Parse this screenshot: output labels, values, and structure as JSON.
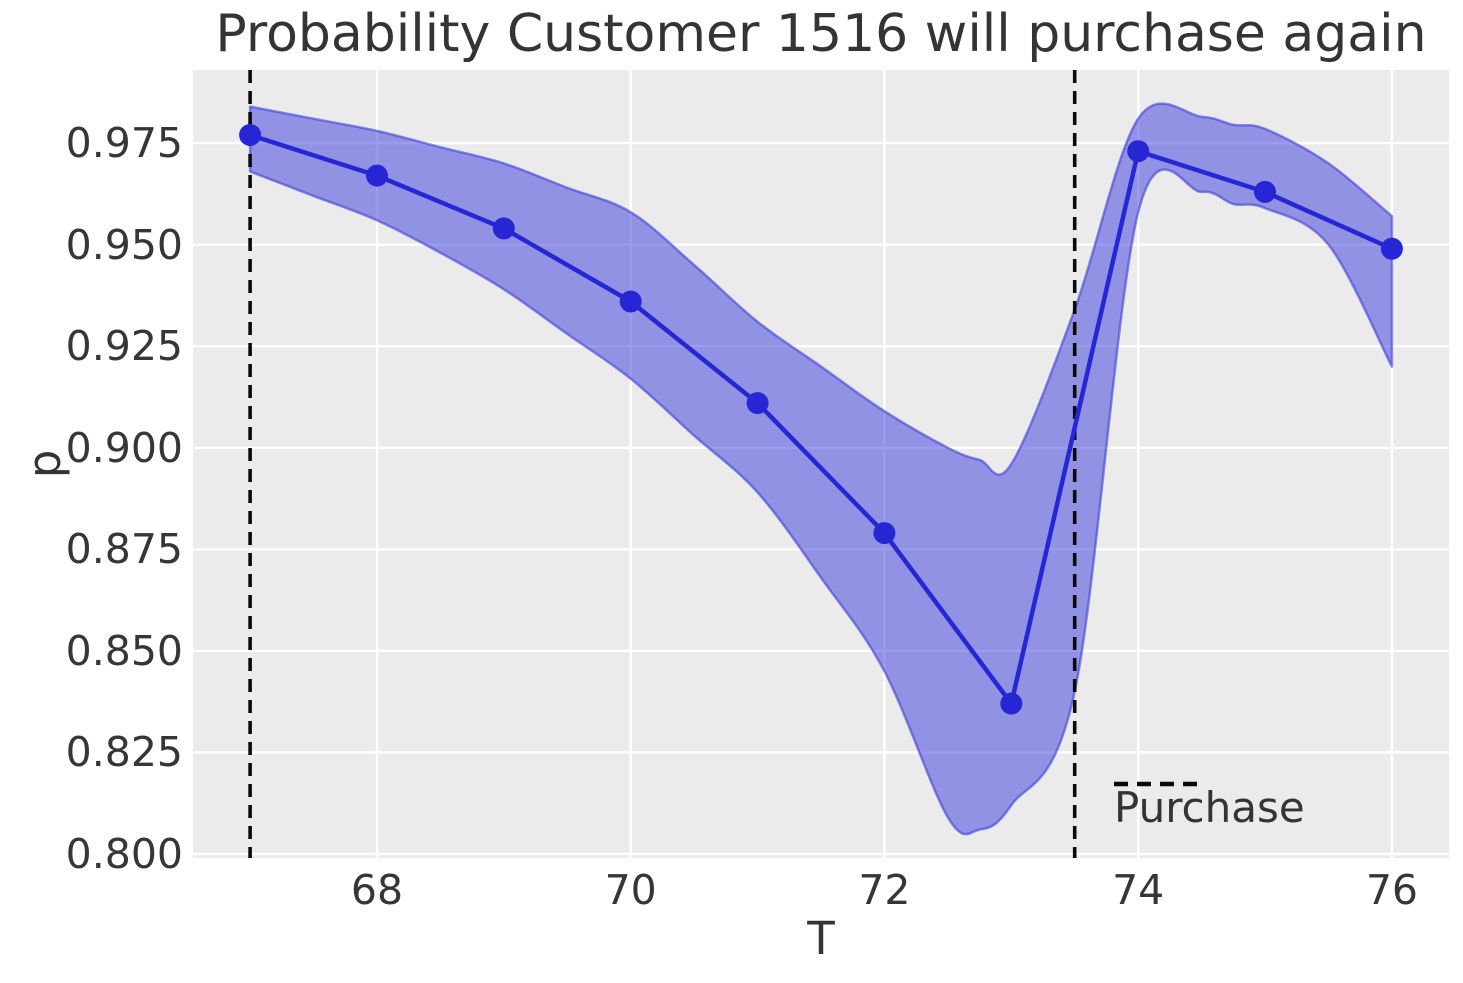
{
  "title": "Probability Customer 1516 will purchase again",
  "axes": {
    "xlabel": "T",
    "ylabel": "p"
  },
  "legend": {
    "label": "Purchase",
    "position": "lower right"
  },
  "chart_data": {
    "type": "line",
    "title": "Probability Customer 1516 will purchase again",
    "xlabel": "T",
    "ylabel": "p",
    "x": [
      67,
      68,
      69,
      70,
      71,
      72,
      73,
      74,
      75,
      76
    ],
    "y": [
      0.977,
      0.967,
      0.954,
      0.936,
      0.911,
      0.879,
      0.837,
      0.973,
      0.963,
      0.949
    ],
    "confidence_band": {
      "x": [
        67.0,
        67.5,
        68.0,
        68.5,
        69.0,
        69.5,
        70.0,
        70.5,
        71.0,
        71.5,
        72.0,
        72.5,
        72.75,
        73.0,
        73.5,
        74.0,
        74.5,
        74.75,
        75.0,
        75.5,
        76.0
      ],
      "upper": [
        0.984,
        0.981,
        0.978,
        0.974,
        0.97,
        0.964,
        0.958,
        0.945,
        0.931,
        0.92,
        0.909,
        0.9,
        0.897,
        0.896,
        0.934,
        0.981,
        0.9815,
        0.9795,
        0.9785,
        0.97,
        0.957
      ],
      "lower": [
        0.968,
        0.962,
        0.956,
        0.948,
        0.939,
        0.928,
        0.917,
        0.903,
        0.889,
        0.868,
        0.845,
        0.809,
        0.806,
        0.812,
        0.84,
        0.958,
        0.963,
        0.96,
        0.959,
        0.95,
        0.92
      ]
    },
    "vlines": {
      "x": [
        67,
        73.5
      ],
      "style": "dashed",
      "label": "Purchase"
    },
    "x_ticks": [
      68,
      70,
      72,
      74,
      76
    ],
    "y_ticks": [
      0.975,
      0.95,
      0.925,
      0.9,
      0.875,
      0.85,
      0.825,
      0.8
    ],
    "xlim": [
      66.55,
      76.45
    ],
    "ylim": [
      0.799,
      0.993
    ],
    "grid": true,
    "legend_position": "lower right",
    "colors": {
      "line": "#2626d4",
      "marker": "#2626d4",
      "band_fill": "rgba(58,58,224,0.5)",
      "band_edge": "rgba(64,64,215,0.6)",
      "vline": "#0a0a0a",
      "plot_background": "#ebebeb",
      "grid": "#ffffff",
      "text": "#343434"
    }
  }
}
